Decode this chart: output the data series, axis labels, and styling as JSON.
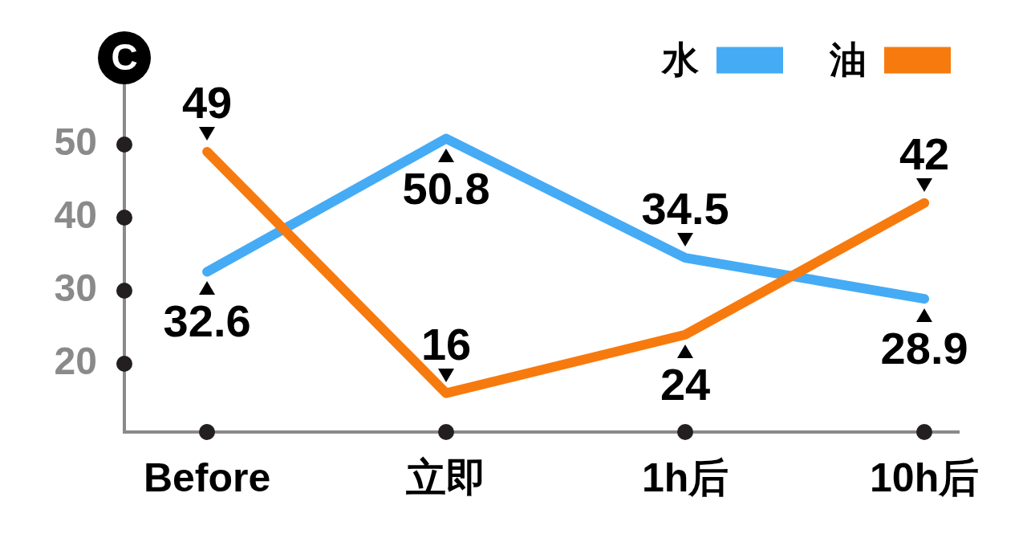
{
  "chart_data": {
    "type": "line",
    "title": "C",
    "categories": [
      "Before",
      "立即",
      "1h后",
      "10h后"
    ],
    "series": [
      {
        "name": "水",
        "color": "#45abf5",
        "values": [
          32.6,
          50.8,
          34.5,
          28.9
        ]
      },
      {
        "name": "油",
        "color": "#f77a0e",
        "values": [
          49,
          16,
          24,
          42
        ]
      }
    ],
    "ylim": [
      10.7,
      58.1
    ],
    "yticks": [
      20,
      30,
      40,
      50
    ],
    "data_labels": true,
    "legend": "top right",
    "grid": false,
    "marker": "none",
    "line_style": "solid"
  }
}
